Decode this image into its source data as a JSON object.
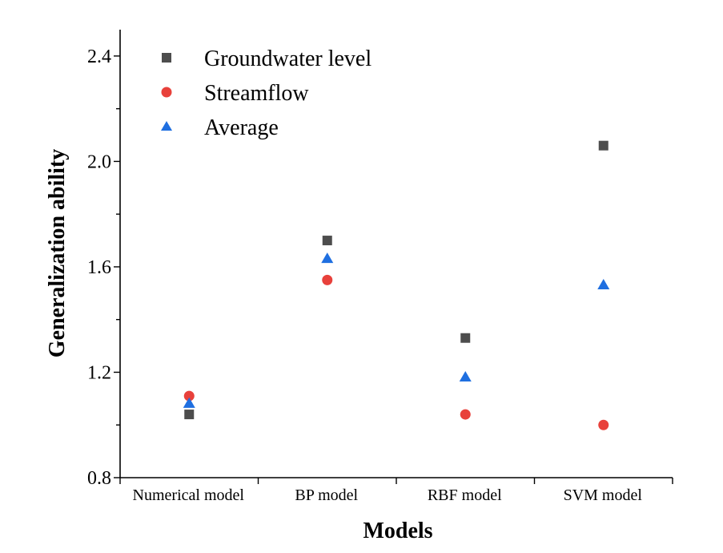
{
  "chart_data": {
    "type": "scatter",
    "title": "",
    "xlabel": "Models",
    "ylabel": "Generalization ability",
    "categories": [
      "Numerical model",
      "BP model",
      "RBF model",
      "SVM model"
    ],
    "ylim": [
      0.8,
      2.5
    ],
    "yticks": [
      "0.8",
      "1.2",
      "1.6",
      "2.0",
      "2.4"
    ],
    "grid": false,
    "legend_position": "top-left",
    "series": [
      {
        "name": "Groundwater level",
        "marker": "square",
        "color": "#4d4d4d",
        "values": [
          1.04,
          1.7,
          1.33,
          2.06
        ]
      },
      {
        "name": "Streamflow",
        "marker": "circle",
        "color": "#e8413b",
        "values": [
          1.11,
          1.55,
          1.04,
          1.0
        ]
      },
      {
        "name": "Average",
        "marker": "triangle",
        "color": "#1f6fe0",
        "values": [
          1.08,
          1.63,
          1.18,
          1.53
        ]
      }
    ]
  }
}
